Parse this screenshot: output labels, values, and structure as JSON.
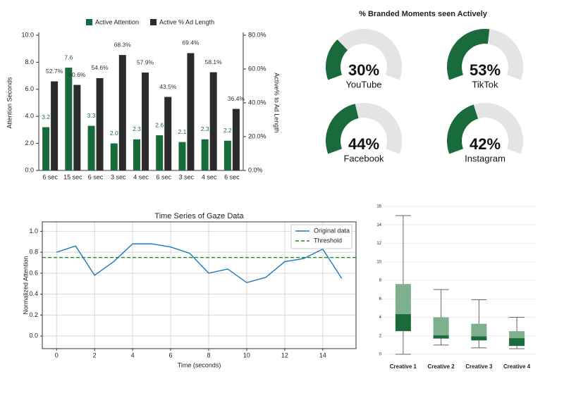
{
  "chart_data": [
    {
      "type": "bar",
      "categories": [
        "6 sec",
        "15 sec",
        "6 sec",
        "3 sec",
        "4 sec",
        "6 sec",
        "3 sec",
        "4 sec",
        "6 sec"
      ],
      "series": [
        {
          "name": "Active Attention",
          "color": "#1a6b3c",
          "values": [
            3.2,
            7.6,
            3.3,
            2.0,
            2.3,
            2.6,
            2.1,
            2.3,
            2.2
          ],
          "value_labels": [
            "3.2",
            "7.6",
            "3.3",
            "2.0",
            "2.3",
            "2.6",
            "2.1",
            "2.3",
            "2.2"
          ]
        },
        {
          "name": "Active % Ad Length",
          "color": "#2b2b2b",
          "axis": "y2",
          "values": [
            52.7,
            50.6,
            54.6,
            68.3,
            57.9,
            43.5,
            69.4,
            58.1,
            36.4
          ],
          "value_labels": [
            "52.7%",
            "50.6%",
            "54.6%",
            "68.3%",
            "57.9%",
            "43.5%",
            "69.4%",
            "58.1%",
            "36.4%"
          ]
        }
      ],
      "ylabel": "Attention Seconds",
      "y2label": "Active% to Ad Length",
      "ylim": [
        0,
        10
      ],
      "yticks": [
        {
          "value": 0,
          "label": "0.0"
        },
        {
          "value": 2,
          "label": "2.0"
        },
        {
          "value": 4,
          "label": "4.0"
        },
        {
          "value": 6,
          "label": "6.0"
        },
        {
          "value": 8,
          "label": "8.0"
        },
        {
          "value": 10,
          "label": "10.0"
        }
      ],
      "y2lim": [
        0,
        80
      ],
      "y2ticks": [
        {
          "value": 0,
          "label": "0.0%"
        },
        {
          "value": 20,
          "label": "20.0%"
        },
        {
          "value": 40,
          "label": "40.0%"
        },
        {
          "value": 60,
          "label": "60.0%"
        },
        {
          "value": 80,
          "label": "80.0%"
        }
      ],
      "legend": "top"
    },
    {
      "type": "gauge",
      "title": "% Branded Moments seen Actively",
      "categories": [
        "YouTube",
        "TikTok",
        "Facebook",
        "Instagram"
      ],
      "values": [
        30,
        53,
        44,
        42
      ],
      "value_labels": [
        "30%",
        "53%",
        "44%",
        "42%"
      ],
      "range": [
        0,
        100
      ],
      "color": "#1a6b3c",
      "track_color": "#e3e4e6"
    },
    {
      "type": "line",
      "title": "Time Series of Gaze Data",
      "xlabel": "Time (seconds)",
      "ylabel": "Normalized Attention",
      "x": [
        0,
        1,
        2,
        3,
        4,
        5,
        6,
        7,
        8,
        9,
        10,
        11,
        12,
        13,
        14,
        15
      ],
      "series": [
        {
          "name": "Original data",
          "color": "#1f77b4",
          "values": [
            0.8,
            0.86,
            0.58,
            0.71,
            0.88,
            0.88,
            0.85,
            0.79,
            0.6,
            0.64,
            0.51,
            0.56,
            0.71,
            0.74,
            0.83,
            0.55
          ]
        }
      ],
      "threshold": {
        "name": "Threshold",
        "value": 0.75,
        "color": "#1a8a1a"
      },
      "xlim": [
        -0.75,
        15.75
      ],
      "xticks": [
        0,
        2,
        4,
        6,
        8,
        10,
        12,
        14
      ],
      "ylim": [
        -0.12,
        1.09
      ],
      "yticks": [
        {
          "value": 0,
          "label": "0.0"
        },
        {
          "value": 0.2,
          "label": "0.2"
        },
        {
          "value": 0.4,
          "label": "0.4"
        },
        {
          "value": 0.6,
          "label": "0.6"
        },
        {
          "value": 0.8,
          "label": "0.8"
        },
        {
          "value": 1,
          "label": "1.0"
        }
      ],
      "grid": true,
      "legend": "upper right"
    },
    {
      "type": "box",
      "categories": [
        "Creative 1",
        "Creative 2",
        "Creative 3",
        "Creative 4"
      ],
      "min": [
        0,
        1.0,
        0.7,
        0.6
      ],
      "q1": [
        2.5,
        1.7,
        1.5,
        0.9
      ],
      "median": [
        4.3,
        2.0,
        1.9,
        1.7
      ],
      "q3": [
        7.6,
        4.0,
        3.3,
        2.5
      ],
      "max": [
        15,
        7.0,
        5.9,
        4.0
      ],
      "ylim": [
        0,
        16
      ],
      "yticks": [
        0,
        2,
        4,
        6,
        8,
        10,
        12,
        14,
        16
      ],
      "upper_color": "#7fb08e",
      "lower_color": "#1a6b3c",
      "grid": true
    }
  ]
}
